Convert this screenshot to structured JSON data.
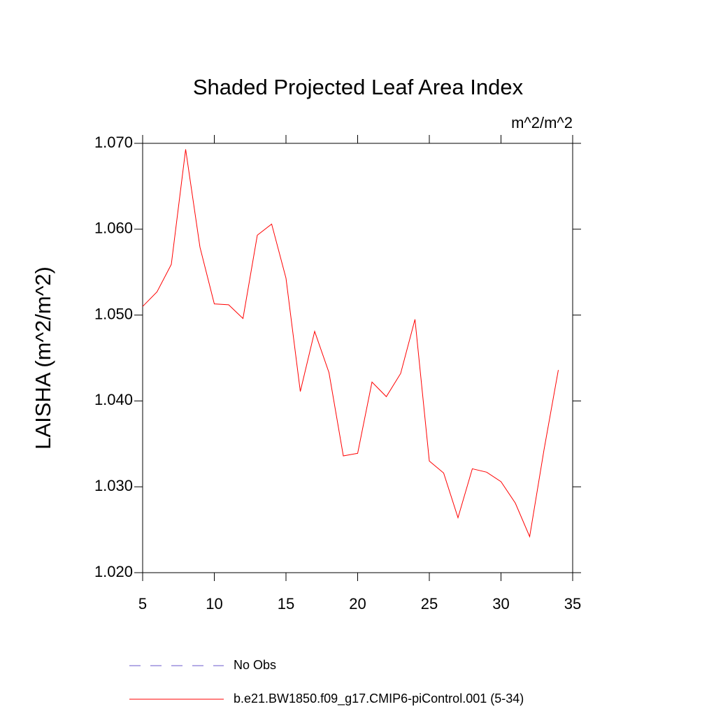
{
  "chart_data": {
    "type": "line",
    "title": "Shaded Projected Leaf Area Index",
    "units": "m^2/m^2",
    "y_label": "LAISHA  (m^2/m^2)",
    "x": [
      5,
      6,
      7,
      8,
      9,
      10,
      11,
      12,
      13,
      14,
      15,
      16,
      17,
      18,
      19,
      20,
      21,
      22,
      23,
      24,
      25,
      26,
      27,
      28,
      29,
      30,
      31,
      32,
      33,
      34
    ],
    "series": [
      {
        "name": "No Obs",
        "color": "#6a5acd",
        "dashed": true,
        "values": [
          null,
          null,
          null,
          null,
          null,
          null,
          null,
          null,
          null,
          null,
          null,
          null,
          null,
          null,
          null,
          null,
          null,
          null,
          null,
          null,
          null,
          null,
          null,
          null,
          null,
          null,
          null,
          null,
          null,
          null
        ]
      },
      {
        "name": "b.e21.BW1850.f09_g17.CMIP6-piControl.001 (5-34)",
        "color": "#ff0000",
        "dashed": false,
        "values": [
          1.051,
          1.0527,
          1.0559,
          1.0693,
          1.0579,
          1.0513,
          1.0512,
          1.0496,
          1.0593,
          1.0606,
          1.0543,
          1.0411,
          1.0481,
          1.0433,
          1.0336,
          1.0339,
          1.0422,
          1.0405,
          1.0432,
          1.0495,
          1.033,
          1.0316,
          1.0264,
          1.0321,
          1.0317,
          1.0306,
          1.0281,
          1.0242,
          1.0343,
          1.0436
        ]
      }
    ],
    "xlim": [
      5,
      35
    ],
    "xticks": [
      5,
      10,
      15,
      20,
      25,
      30,
      35
    ],
    "ylim": [
      1.02,
      1.07
    ],
    "yticks": [
      {
        "value": 1.02,
        "label": "1.020"
      },
      {
        "value": 1.03,
        "label": "1.030"
      },
      {
        "value": 1.04,
        "label": "1.040"
      },
      {
        "value": 1.05,
        "label": "1.050"
      },
      {
        "value": 1.06,
        "label": "1.060"
      },
      {
        "value": 1.07,
        "label": "1.070"
      }
    ],
    "grid": false
  }
}
